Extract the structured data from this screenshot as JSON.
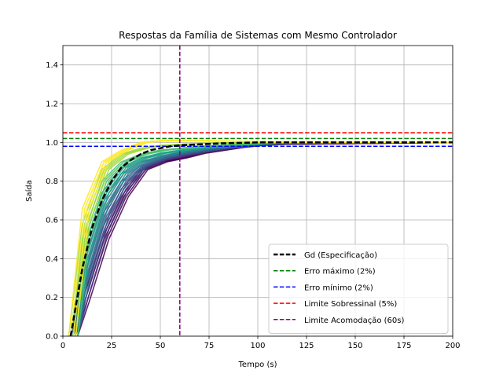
{
  "chart_data": {
    "type": "line",
    "title": "Respostas da Família de Sistemas com Mesmo Controlador",
    "xlabel": "Tempo (s)",
    "ylabel": "Saída",
    "xlim": [
      0,
      200
    ],
    "ylim": [
      0,
      1.5
    ],
    "xticks": [
      0,
      25,
      50,
      75,
      100,
      125,
      150,
      175,
      200
    ],
    "yticks": [
      0.0,
      0.2,
      0.4,
      0.6,
      0.8,
      1.0,
      1.2,
      1.4
    ],
    "xtick_labels": [
      "0",
      "25",
      "50",
      "75",
      "100",
      "125",
      "150",
      "175",
      "200"
    ],
    "ytick_labels": [
      "0.0",
      "0.2",
      "0.4",
      "0.6",
      "0.8",
      "1.0",
      "1.2",
      "1.4"
    ],
    "grid": true,
    "legend_position": "lower-right",
    "family_colormap": "viridis",
    "family_colors": [
      "#440154",
      "#46327e",
      "#365c8d",
      "#277f8e",
      "#1fa187",
      "#4ac16d",
      "#a0da39",
      "#fde725"
    ],
    "family_series": [
      {
        "x": [
          4,
          10,
          20,
          30,
          40,
          50,
          60,
          70,
          80,
          90,
          100,
          110,
          200
        ],
        "y": [
          0,
          0.18,
          0.5,
          0.72,
          0.86,
          0.9,
          0.92,
          0.945,
          0.96,
          0.975,
          0.985,
          0.99,
          1.0
        ]
      },
      {
        "x": [
          4,
          10,
          20,
          30,
          40,
          50,
          60,
          70,
          80,
          90,
          100,
          110,
          200
        ],
        "y": [
          0,
          0.22,
          0.55,
          0.76,
          0.87,
          0.91,
          0.93,
          0.95,
          0.965,
          0.978,
          0.987,
          0.992,
          1.0
        ]
      },
      {
        "x": [
          4,
          10,
          20,
          30,
          40,
          50,
          60,
          70,
          80,
          90,
          100,
          110,
          200
        ],
        "y": [
          0,
          0.28,
          0.62,
          0.8,
          0.88,
          0.92,
          0.94,
          0.955,
          0.97,
          0.98,
          0.99,
          0.995,
          1.0
        ]
      },
      {
        "x": [
          4,
          10,
          20,
          30,
          40,
          50,
          60,
          70,
          80,
          90,
          100,
          110,
          200
        ],
        "y": [
          0,
          0.35,
          0.68,
          0.84,
          0.9,
          0.93,
          0.95,
          0.965,
          0.975,
          0.985,
          0.992,
          0.996,
          1.0
        ]
      },
      {
        "x": [
          4,
          10,
          20,
          30,
          40,
          50,
          60,
          70,
          80,
          90,
          100,
          110,
          200
        ],
        "y": [
          0,
          0.42,
          0.74,
          0.87,
          0.92,
          0.945,
          0.96,
          0.97,
          0.98,
          0.988,
          0.994,
          0.997,
          1.0
        ]
      },
      {
        "x": [
          4,
          10,
          20,
          30,
          40,
          50,
          60,
          70,
          80,
          90,
          100,
          110,
          200
        ],
        "y": [
          0,
          0.5,
          0.8,
          0.9,
          0.94,
          0.96,
          0.97,
          0.98,
          0.986,
          0.992,
          0.996,
          0.998,
          1.0
        ]
      },
      {
        "x": [
          3,
          10,
          20,
          30,
          40,
          50,
          60,
          70,
          80,
          90,
          100,
          110,
          200
        ],
        "y": [
          0,
          0.58,
          0.86,
          0.94,
          0.97,
          0.985,
          0.99,
          0.995,
          0.997,
          0.998,
          0.999,
          1.0,
          1.0
        ]
      },
      {
        "x": [
          3,
          10,
          20,
          30,
          40,
          50,
          60,
          70,
          80,
          90,
          100,
          110,
          200
        ],
        "y": [
          0,
          0.66,
          0.9,
          0.96,
          1.0,
          1.01,
          1.01,
          1.01,
          1.008,
          1.005,
          1.003,
          1.001,
          1.0
        ]
      }
    ],
    "series": [
      {
        "name": "Gd (Especificação)",
        "color": "#000000",
        "style": "dashed",
        "x": [
          4,
          10,
          15,
          20,
          25,
          30,
          35,
          40,
          45,
          50,
          55,
          60,
          70,
          80,
          100,
          200
        ],
        "y": [
          0,
          0.35,
          0.56,
          0.7,
          0.8,
          0.87,
          0.91,
          0.94,
          0.96,
          0.97,
          0.98,
          0.985,
          0.99,
          0.995,
          1.0,
          1.0
        ]
      }
    ],
    "hlines": [
      {
        "name": "Erro máximo (2%)",
        "y": 1.02,
        "color": "#008000"
      },
      {
        "name": "Erro mínimo (2%)",
        "y": 0.98,
        "color": "#0000ff"
      },
      {
        "name": "Limite Sobressinal (5%)",
        "y": 1.05,
        "color": "#ff0000"
      }
    ],
    "vlines": [
      {
        "name": "Limite Acomodação (60s)",
        "x": 60,
        "color": "#800080"
      }
    ]
  }
}
